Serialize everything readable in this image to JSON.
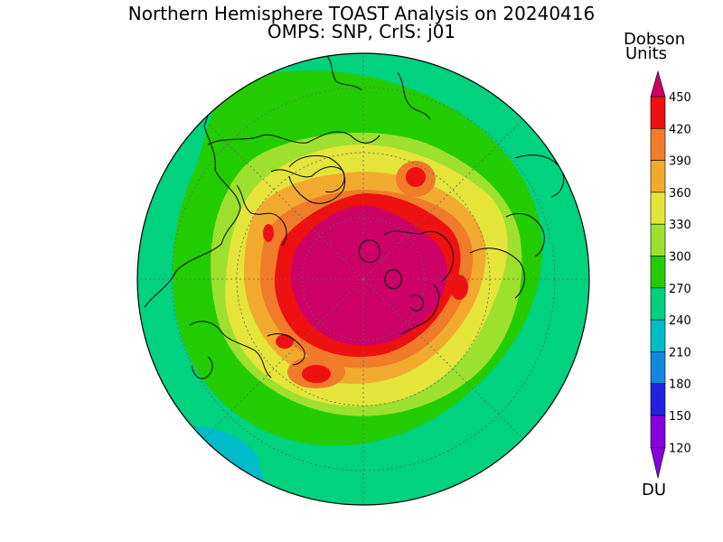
{
  "header": {
    "title_line1": "Northern Hemisphere TOAST Analysis on 20240416",
    "title_line2": "OMPS: SNP, CrIS: j01"
  },
  "colorbar": {
    "units_line1": "Dobson",
    "units_line2": "Units",
    "bottom_label": "DU",
    "levels": [
      {
        "label": "450",
        "color": "#cc0066"
      },
      {
        "label": "420",
        "color": "#ee1111"
      },
      {
        "label": "390",
        "color": "#f07b2a"
      },
      {
        "label": "360",
        "color": "#f2aa2e"
      },
      {
        "label": "330",
        "color": "#e4e43a"
      },
      {
        "label": "300",
        "color": "#9ee02e"
      },
      {
        "label": "270",
        "color": "#22cc00"
      },
      {
        "label": "240",
        "color": "#00d27f"
      },
      {
        "label": "210",
        "color": "#00bcc8"
      },
      {
        "label": "180",
        "color": "#1188dd"
      },
      {
        "label": "150",
        "color": "#2222dd"
      },
      {
        "label": "120",
        "color": "#8800dd"
      }
    ]
  },
  "map": {
    "projection": "north-polar-stereographic",
    "background_color": "#00d27f",
    "field_colors": {
      "green": "#22cc00",
      "light_green": "#9ee02e",
      "yellow": "#e4e43a",
      "light_orange": "#f2aa2e",
      "orange": "#f07b2a",
      "red": "#ee1111",
      "magenta": "#cc0066",
      "cyan": "#00bcc8"
    }
  }
}
